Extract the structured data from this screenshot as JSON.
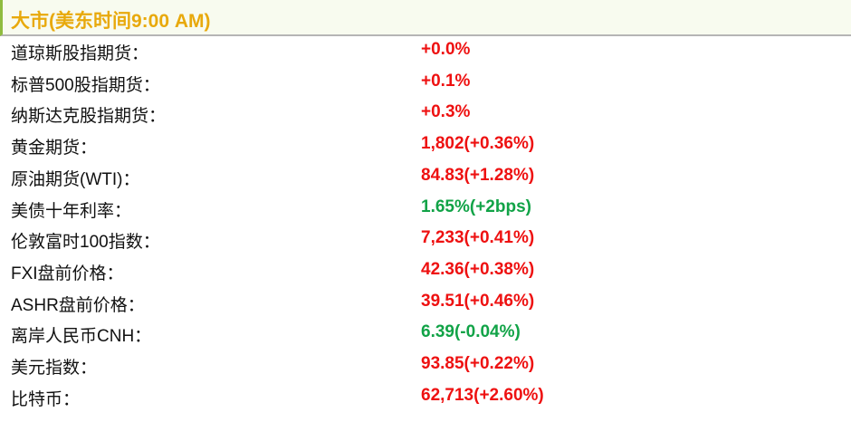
{
  "header": {
    "title": "大市(美东时间9:00 AM)"
  },
  "rows": [
    {
      "label": "道琼斯股指期货：",
      "value": "+0.0%",
      "color": "#ee1111"
    },
    {
      "label": "标普500股指期货：",
      "value": "+0.1%",
      "color": "#ee1111"
    },
    {
      "label": "纳斯达克股指期货：",
      "value": "+0.3%",
      "color": "#ee1111"
    },
    {
      "label": "黄金期货：",
      "value": "1,802(+0.36%)",
      "color": "#ee1111"
    },
    {
      "label": "原油期货(WTI)：",
      "value": "84.83(+1.28%)",
      "color": "#ee1111"
    },
    {
      "label": "美债十年利率：",
      "value": "1.65%(+2bps)",
      "color": "#11a347"
    },
    {
      "label": "伦敦富时100指数：",
      "value": "7,233(+0.41%)",
      "color": "#ee1111"
    },
    {
      "label": "FXI盘前价格：",
      "value": "42.36(+0.38%)",
      "color": "#ee1111"
    },
    {
      "label": "ASHR盘前价格：",
      "value": "39.51(+0.46%)",
      "color": "#ee1111"
    },
    {
      "label": "离岸人民币CNH：",
      "value": "6.39(-0.04%)",
      "color": "#11a347"
    },
    {
      "label": "美元指数：",
      "value": "93.85(+0.22%)",
      "color": "#ee1111"
    },
    {
      "label": "比特币：",
      "value": "62,713(+2.60%)",
      "color": "#ee1111"
    }
  ]
}
